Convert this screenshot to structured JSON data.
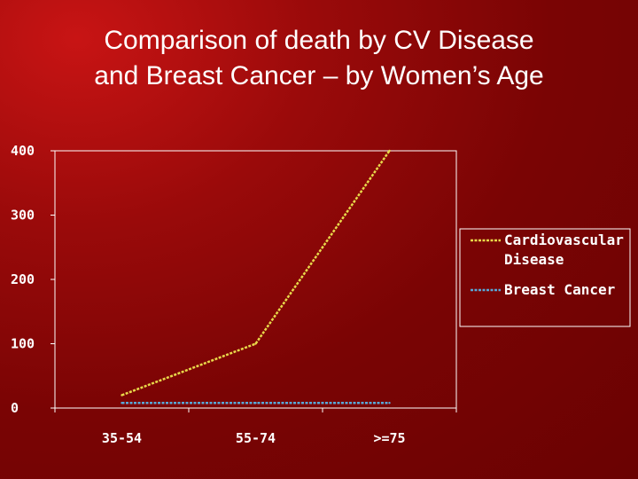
{
  "title": {
    "line1": "Comparison of death by CV Disease",
    "line2": "and Breast Cancer – by Women’s Age"
  },
  "chart_data": {
    "type": "line",
    "title": "Comparison of death by CV Disease and Breast Cancer – by Women’s Age",
    "categories": [
      "35-54",
      "55-74",
      ">=75"
    ],
    "yticks": [
      0,
      100,
      200,
      300,
      400
    ],
    "ylim": [
      0,
      400
    ],
    "xlabel": "",
    "ylabel": "",
    "grid": false,
    "legend_position": "right",
    "series": [
      {
        "name": "Cardiovascular Disease",
        "name_lines": [
          "Cardiovascular",
          "Disease"
        ],
        "values": [
          20,
          100,
          400
        ],
        "color": "#e8d84a"
      },
      {
        "name": "Breast Cancer",
        "name_lines": [
          "Breast Cancer"
        ],
        "values": [
          8,
          8,
          8
        ],
        "color": "#58a8d8"
      }
    ]
  }
}
